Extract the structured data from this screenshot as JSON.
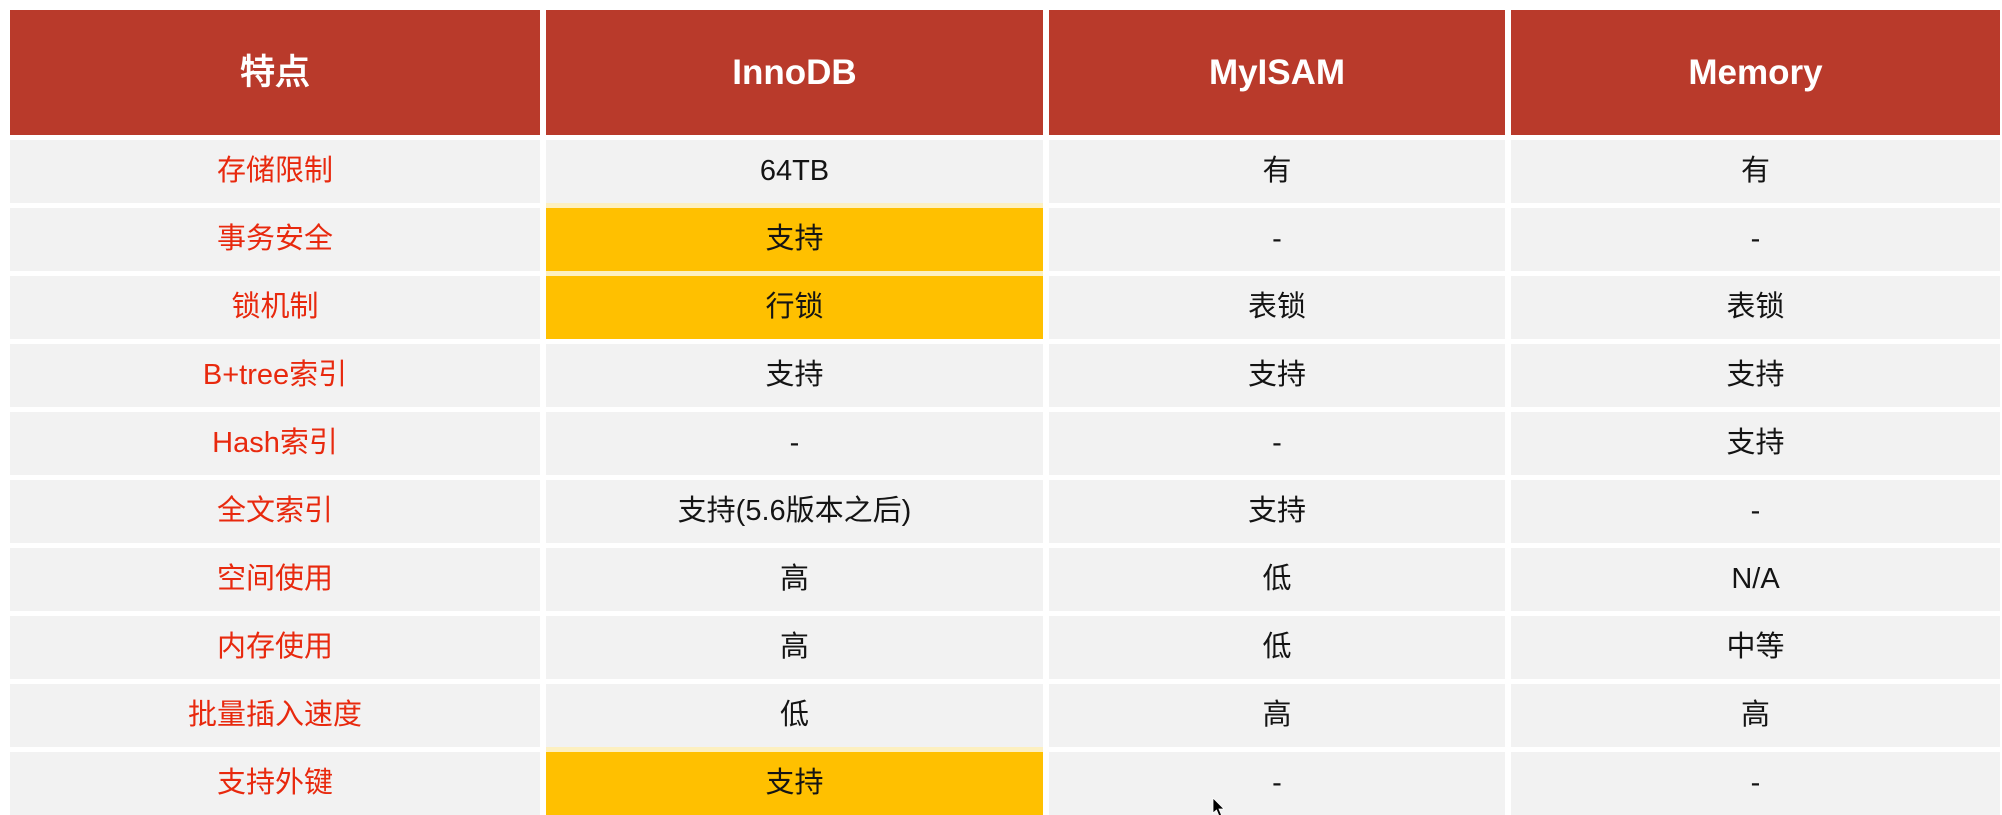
{
  "colors": {
    "header_bg": "#b93a2b",
    "header_text": "#ffffff",
    "row_bg": "#f2f2f2",
    "label_text": "#e8290e",
    "cell_text": "#141414",
    "highlight_bg": "#ffc000",
    "page_bg": "#ffffff"
  },
  "table": {
    "columns": [
      "特点",
      "InnoDB",
      "MyISAM",
      "Memory"
    ],
    "rows": [
      {
        "label": "存储限制",
        "cells": [
          {
            "text": "64TB",
            "highlight": false
          },
          {
            "text": "有",
            "highlight": false
          },
          {
            "text": "有",
            "highlight": false
          }
        ]
      },
      {
        "label": "事务安全",
        "cells": [
          {
            "text": "支持",
            "highlight": true
          },
          {
            "text": "-",
            "highlight": false
          },
          {
            "text": "-",
            "highlight": false
          }
        ]
      },
      {
        "label": "锁机制",
        "cells": [
          {
            "text": "行锁",
            "highlight": true
          },
          {
            "text": "表锁",
            "highlight": false
          },
          {
            "text": "表锁",
            "highlight": false
          }
        ]
      },
      {
        "label": "B+tree索引",
        "cells": [
          {
            "text": "支持",
            "highlight": false
          },
          {
            "text": "支持",
            "highlight": false
          },
          {
            "text": "支持",
            "highlight": false
          }
        ]
      },
      {
        "label": "Hash索引",
        "cells": [
          {
            "text": "-",
            "highlight": false
          },
          {
            "text": "-",
            "highlight": false
          },
          {
            "text": "支持",
            "highlight": false
          }
        ]
      },
      {
        "label": "全文索引",
        "cells": [
          {
            "text": "支持(5.6版本之后)",
            "highlight": false
          },
          {
            "text": "支持",
            "highlight": false
          },
          {
            "text": "-",
            "highlight": false
          }
        ]
      },
      {
        "label": "空间使用",
        "cells": [
          {
            "text": "高",
            "highlight": false
          },
          {
            "text": "低",
            "highlight": false
          },
          {
            "text": "N/A",
            "highlight": false
          }
        ]
      },
      {
        "label": "内存使用",
        "cells": [
          {
            "text": "高",
            "highlight": false
          },
          {
            "text": "低",
            "highlight": false
          },
          {
            "text": "中等",
            "highlight": false
          }
        ]
      },
      {
        "label": "批量插入速度",
        "cells": [
          {
            "text": "低",
            "highlight": false
          },
          {
            "text": "高",
            "highlight": false
          },
          {
            "text": "高",
            "highlight": false
          }
        ]
      },
      {
        "label": "支持外键",
        "cells": [
          {
            "text": "支持",
            "highlight": true
          },
          {
            "text": "-",
            "highlight": false
          },
          {
            "text": "-",
            "highlight": false
          }
        ]
      }
    ]
  },
  "cursor": {
    "icon": "mouse-pointer"
  }
}
